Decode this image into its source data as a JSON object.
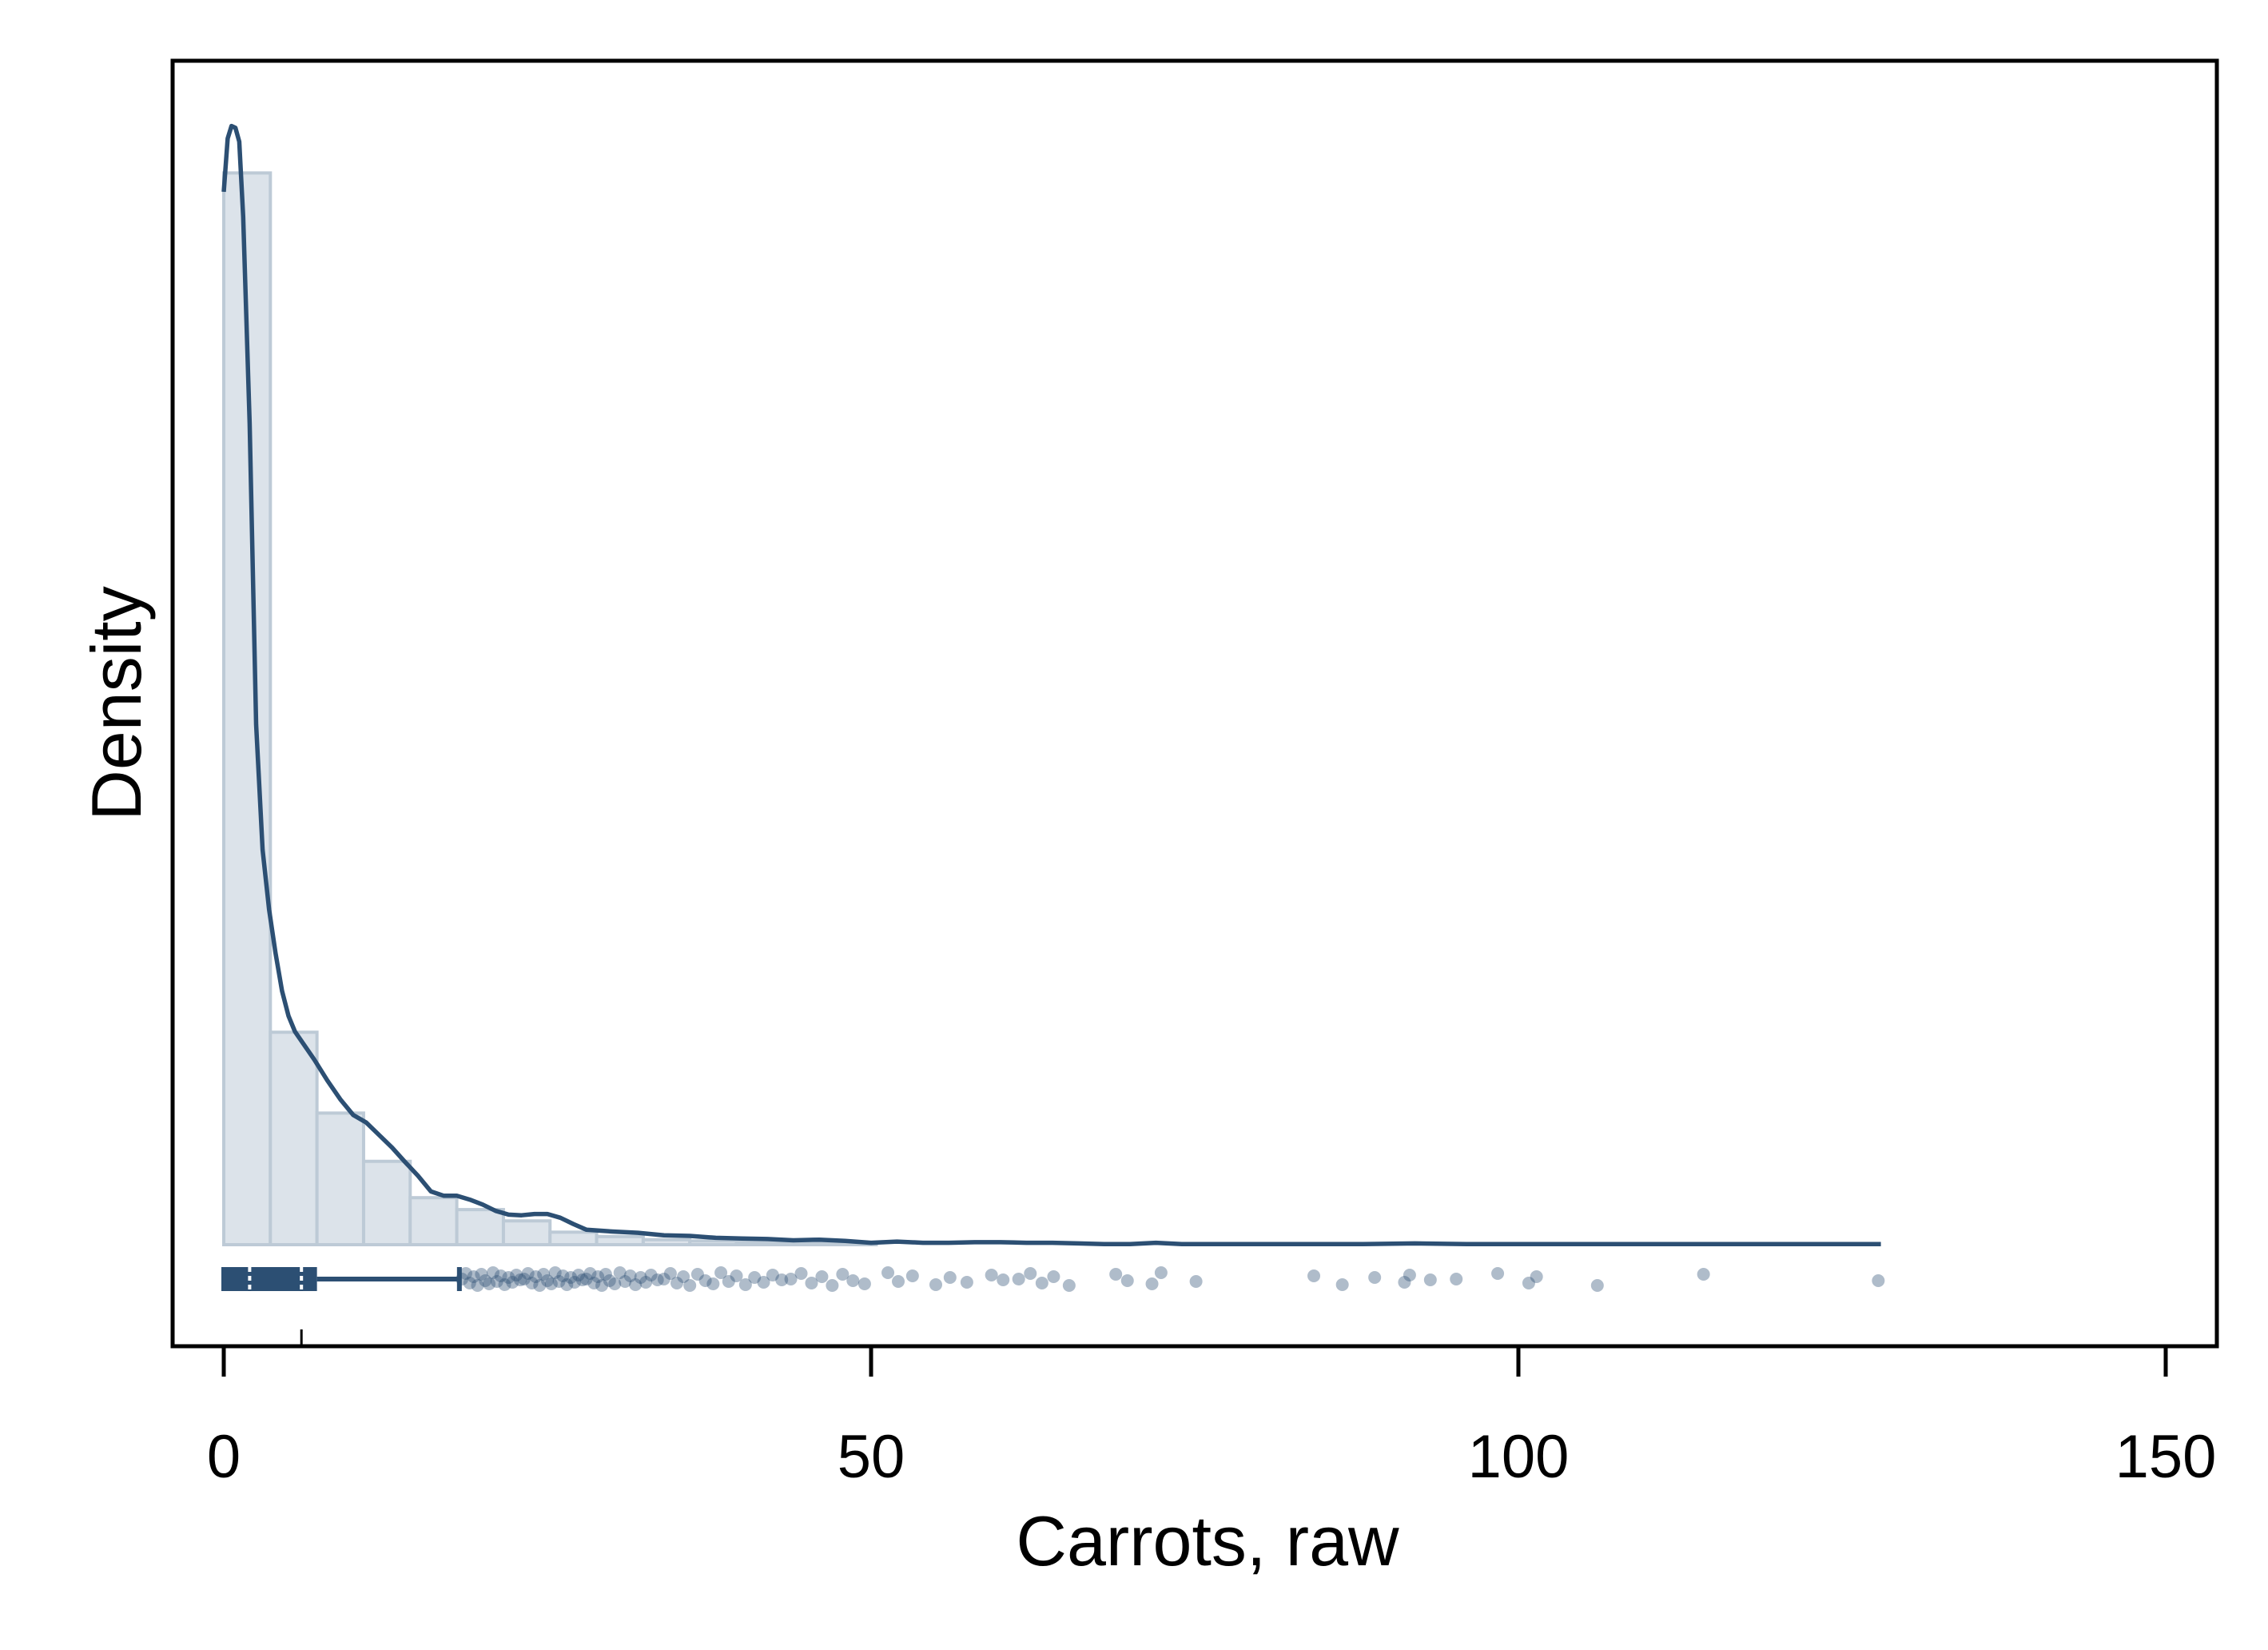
{
  "chart_data": {
    "type": "histogram",
    "title": "",
    "xlabel": "Carrots, raw",
    "ylabel": "Density",
    "xlim": [
      -2,
      153
    ],
    "x_ticks": [
      0,
      50,
      100,
      150
    ],
    "x_tick_labels": [
      "0",
      "50",
      "100",
      "150"
    ],
    "y_ticks_shown": false,
    "grid": false,
    "legend": "none",
    "histogram": {
      "bin_width": 3.6,
      "bins": [
        {
          "x0": 0.0,
          "x1": 3.6,
          "density": 0.171
        },
        {
          "x0": 3.6,
          "x1": 7.2,
          "density": 0.0339
        },
        {
          "x0": 7.2,
          "x1": 10.8,
          "density": 0.021
        },
        {
          "x0": 10.8,
          "x1": 14.4,
          "density": 0.0133
        },
        {
          "x0": 14.4,
          "x1": 18.0,
          "density": 0.0075
        },
        {
          "x0": 18.0,
          "x1": 21.6,
          "density": 0.0056
        },
        {
          "x0": 21.6,
          "x1": 25.2,
          "density": 0.0038
        },
        {
          "x0": 25.2,
          "x1": 28.8,
          "density": 0.002
        },
        {
          "x0": 28.8,
          "x1": 32.4,
          "density": 0.0013
        },
        {
          "x0": 32.4,
          "x1": 36.0,
          "density": 0.0008
        },
        {
          "x0": 36.0,
          "x1": 39.6,
          "density": 0.0006
        },
        {
          "x0": 39.6,
          "x1": 43.2,
          "density": 0.0005
        },
        {
          "x0": 43.2,
          "x1": 46.8,
          "density": 0.0004
        },
        {
          "x0": 46.8,
          "x1": 50.4,
          "density": 0.0003
        }
      ]
    },
    "kde": {
      "x": [
        0,
        0.3,
        0.6,
        0.9,
        1.2,
        1.5,
        2,
        2.5,
        3,
        3.5,
        4,
        4.5,
        5,
        5.5,
        6,
        7,
        8,
        9,
        10,
        11,
        12,
        13,
        14,
        15,
        16,
        17,
        18,
        19,
        20,
        21,
        22,
        23,
        24,
        25,
        26,
        27,
        28,
        30,
        32,
        34,
        36,
        38,
        40,
        42,
        44,
        46,
        48,
        50,
        52,
        54,
        56,
        58,
        60,
        62,
        64,
        66,
        68,
        70,
        72,
        74,
        76,
        78,
        80,
        84,
        88,
        92,
        96,
        100,
        104,
        108,
        112,
        116,
        120,
        124,
        128
      ],
      "y": [
        0.168,
        0.1765,
        0.1785,
        0.1782,
        0.176,
        0.164,
        0.131,
        0.083,
        0.063,
        0.0535,
        0.0465,
        0.0405,
        0.0365,
        0.034,
        0.0325,
        0.0295,
        0.0262,
        0.0232,
        0.0207,
        0.0195,
        0.0175,
        0.0155,
        0.0132,
        0.011,
        0.0085,
        0.0078,
        0.0078,
        0.0072,
        0.0064,
        0.0054,
        0.0048,
        0.0047,
        0.0049,
        0.0049,
        0.0043,
        0.0033,
        0.0024,
        0.0021,
        0.0019,
        0.0015,
        0.0014,
        0.0011,
        0.001,
        0.0009,
        0.0007,
        0.0008,
        0.0006,
        0.0003,
        0.0005,
        0.0003,
        0.0003,
        0.0004,
        0.0004,
        0.0003,
        0.0003,
        0.0002,
        0.0001,
        0.0001,
        0.0003,
        0.0001,
        0.0001,
        0.0001,
        0.0001,
        0.0001,
        0.0001,
        0.0002,
        0.0001,
        0.0001,
        0.0001,
        0.0001,
        0.0001,
        0.0001,
        0.0001,
        0.0001,
        0.0001
      ]
    },
    "boxplot": {
      "min": 0,
      "q1": 0.4,
      "median": 2,
      "mean": 6,
      "q3": 7.2,
      "whisker_high": 18.2,
      "outliers": [
        18.4,
        18.7,
        19.0,
        19.3,
        19.6,
        19.9,
        20.2,
        20.5,
        20.8,
        21.1,
        21.4,
        21.7,
        22.0,
        22.3,
        22.6,
        22.9,
        23.2,
        23.5,
        23.8,
        24.1,
        24.4,
        24.7,
        25.0,
        25.3,
        25.6,
        25.9,
        26.2,
        26.5,
        26.8,
        27.1,
        27.4,
        27.7,
        28.0,
        28.3,
        28.6,
        28.9,
        29.2,
        29.5,
        29.8,
        30.2,
        30.6,
        31.0,
        31.4,
        31.8,
        32.2,
        32.6,
        33.0,
        33.5,
        34.0,
        34.5,
        35.0,
        35.5,
        36.0,
        36.6,
        37.2,
        37.8,
        38.4,
        39.0,
        39.6,
        40.3,
        41.0,
        41.7,
        42.4,
        43.1,
        43.8,
        44.6,
        45.4,
        46.2,
        47.0,
        47.8,
        48.6,
        49.5,
        51.3,
        52.1,
        53.2,
        55.0,
        56.1,
        57.4,
        59.3,
        60.2,
        61.4,
        62.3,
        63.2,
        64.1,
        65.3,
        68.9,
        69.8,
        71.7,
        72.4,
        75.1,
        84.2,
        86.4,
        88.9,
        91.2,
        91.6,
        93.2,
        95.2,
        98.4,
        100.8,
        101.4,
        106.1,
        114.3,
        127.8
      ]
    },
    "colors": {
      "line": "#2c4f73",
      "bar_fill": "#dce3ea",
      "bar_stroke": "#bdcad6",
      "box": "#2c4f73",
      "point": "#2c4f73",
      "frame": "#000000"
    }
  }
}
